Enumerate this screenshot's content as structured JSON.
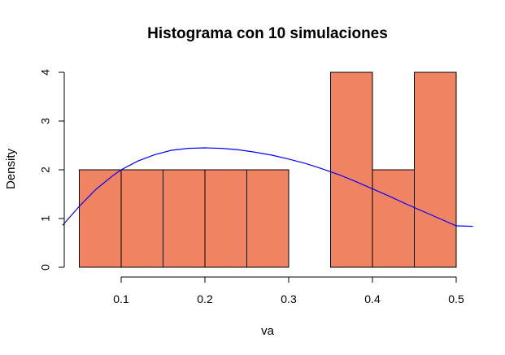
{
  "chart_data": {
    "type": "histogram",
    "title": "Histograma con 10 simulaciones",
    "xlabel": "va",
    "ylabel": "Density",
    "xlim": [
      0.05,
      0.5
    ],
    "ylim": [
      0,
      4
    ],
    "x_ticks": [
      0.1,
      0.2,
      0.3,
      0.4,
      0.5
    ],
    "x_tick_labels": [
      "0.1",
      "0.2",
      "0.3",
      "0.4",
      "0.5"
    ],
    "y_ticks": [
      0,
      1,
      2,
      3,
      4
    ],
    "y_tick_labels": [
      "0",
      "1",
      "2",
      "3",
      "4"
    ],
    "bins": [
      {
        "x0": 0.05,
        "x1": 0.1,
        "density": 2
      },
      {
        "x0": 0.1,
        "x1": 0.15,
        "density": 2
      },
      {
        "x0": 0.15,
        "x1": 0.2,
        "density": 2
      },
      {
        "x0": 0.2,
        "x1": 0.25,
        "density": 2
      },
      {
        "x0": 0.25,
        "x1": 0.3,
        "density": 2
      },
      {
        "x0": 0.3,
        "x1": 0.35,
        "density": 0
      },
      {
        "x0": 0.35,
        "x1": 0.4,
        "density": 4
      },
      {
        "x0": 0.4,
        "x1": 0.45,
        "density": 2
      },
      {
        "x0": 0.45,
        "x1": 0.5,
        "density": 4
      }
    ],
    "bar_color": "#f08462",
    "bar_border_color": "#000000",
    "curve_color": "#0000ff",
    "curve": {
      "x": [
        0.03,
        0.05,
        0.07,
        0.09,
        0.1,
        0.12,
        0.14,
        0.16,
        0.18,
        0.2,
        0.22,
        0.24,
        0.26,
        0.28,
        0.3,
        0.32,
        0.34,
        0.36,
        0.38,
        0.4,
        0.42,
        0.44,
        0.46,
        0.48,
        0.5,
        0.52
      ],
      "y": [
        0.86,
        1.25,
        1.6,
        1.88,
        2.0,
        2.18,
        2.31,
        2.4,
        2.44,
        2.45,
        2.44,
        2.41,
        2.36,
        2.3,
        2.22,
        2.13,
        2.02,
        1.9,
        1.76,
        1.61,
        1.46,
        1.3,
        1.15,
        1.0,
        0.85,
        0.84
      ]
    },
    "grid": false,
    "legend": "none"
  }
}
